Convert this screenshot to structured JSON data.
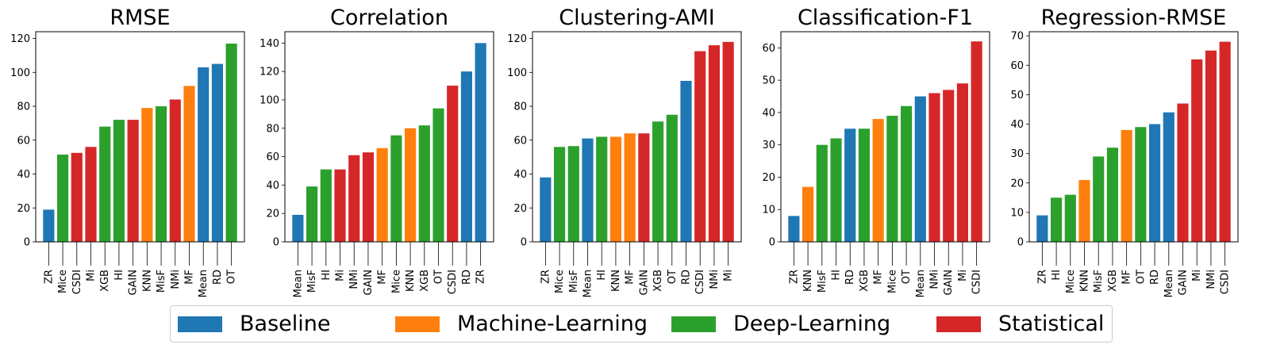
{
  "colors": {
    "Baseline": "#1f77b4",
    "Machine-Learning": "#ff7f0e",
    "Deep-Learning": "#2ca02c",
    "Statistical": "#d62728"
  },
  "legend": {
    "placement": "bottom-center",
    "entries": [
      "Baseline",
      "Machine-Learning",
      "Deep-Learning",
      "Statistical"
    ]
  },
  "chart_data": [
    {
      "type": "bar",
      "title": "RMSE",
      "ylim": [
        0,
        124
      ],
      "yticks": [
        0,
        20,
        40,
        60,
        80,
        100,
        120
      ],
      "categories": [
        "ZR",
        "Mice",
        "CSDI",
        "Mi",
        "XGB",
        "HI",
        "GAIN",
        "KNN",
        "MisF",
        "NMi",
        "MF",
        "Mean",
        "RD",
        "OT"
      ],
      "values": [
        19,
        51.5,
        52.5,
        56,
        68,
        72,
        72,
        79,
        80,
        84,
        92,
        103,
        105,
        117
      ],
      "groups": [
        "Baseline",
        "Deep-Learning",
        "Statistical",
        "Statistical",
        "Deep-Learning",
        "Deep-Learning",
        "Statistical",
        "Machine-Learning",
        "Deep-Learning",
        "Statistical",
        "Machine-Learning",
        "Baseline",
        "Baseline",
        "Deep-Learning"
      ]
    },
    {
      "type": "bar",
      "title": "Correlation",
      "ylim": [
        0,
        148
      ],
      "yticks": [
        0,
        20,
        40,
        60,
        80,
        100,
        120,
        140
      ],
      "categories": [
        "Mean",
        "MisF",
        "HI",
        "Mi",
        "NMi",
        "GAIN",
        "MF",
        "Mice",
        "KNN",
        "XGB",
        "OT",
        "CSDI",
        "RD",
        "ZR"
      ],
      "values": [
        19,
        39,
        51,
        51,
        61,
        63,
        66,
        75,
        80,
        82,
        94,
        110,
        120,
        140
      ],
      "groups": [
        "Baseline",
        "Deep-Learning",
        "Deep-Learning",
        "Statistical",
        "Statistical",
        "Statistical",
        "Machine-Learning",
        "Deep-Learning",
        "Machine-Learning",
        "Deep-Learning",
        "Deep-Learning",
        "Statistical",
        "Baseline",
        "Baseline"
      ]
    },
    {
      "type": "bar",
      "title": "Clustering-AMI",
      "ylim": [
        0,
        124
      ],
      "yticks": [
        0,
        20,
        40,
        60,
        80,
        100,
        120
      ],
      "categories": [
        "ZR",
        "Mice",
        "MisF",
        "Mean",
        "HI",
        "KNN",
        "MF",
        "GAIN",
        "XGB",
        "OT",
        "RD",
        "CSDI",
        "NMi",
        "Mi"
      ],
      "values": [
        38,
        56,
        56.5,
        61,
        62,
        62,
        64,
        64,
        71,
        75,
        95,
        112.5,
        116,
        118
      ],
      "groups": [
        "Baseline",
        "Deep-Learning",
        "Deep-Learning",
        "Baseline",
        "Deep-Learning",
        "Machine-Learning",
        "Machine-Learning",
        "Statistical",
        "Deep-Learning",
        "Deep-Learning",
        "Baseline",
        "Statistical",
        "Statistical",
        "Statistical"
      ]
    },
    {
      "type": "bar",
      "title": "Classification-F1",
      "ylim": [
        0,
        65
      ],
      "yticks": [
        0,
        10,
        20,
        30,
        40,
        50,
        60
      ],
      "categories": [
        "ZR",
        "KNN",
        "MisF",
        "HI",
        "RD",
        "XGB",
        "MF",
        "Mice",
        "OT",
        "Mean",
        "NMi",
        "GAIN",
        "Mi",
        "CSDI"
      ],
      "values": [
        8,
        17,
        30,
        32,
        35,
        35,
        38,
        39,
        42,
        45,
        46,
        47,
        49,
        62
      ],
      "groups": [
        "Baseline",
        "Machine-Learning",
        "Deep-Learning",
        "Deep-Learning",
        "Baseline",
        "Deep-Learning",
        "Machine-Learning",
        "Deep-Learning",
        "Deep-Learning",
        "Baseline",
        "Statistical",
        "Statistical",
        "Statistical",
        "Statistical"
      ]
    },
    {
      "type": "bar",
      "title": "Regression-RMSE",
      "ylim": [
        0,
        71.4
      ],
      "yticks": [
        0,
        10,
        20,
        30,
        40,
        50,
        60,
        70
      ],
      "categories": [
        "ZR",
        "HI",
        "Mice",
        "KNN",
        "MisF",
        "XGB",
        "MF",
        "OT",
        "RD",
        "Mean",
        "GAIN",
        "Mi",
        "NMi",
        "CSDI"
      ],
      "values": [
        9,
        15,
        16,
        21,
        29,
        32,
        38,
        39,
        40,
        44,
        47,
        62,
        65,
        68
      ],
      "groups": [
        "Baseline",
        "Deep-Learning",
        "Deep-Learning",
        "Machine-Learning",
        "Deep-Learning",
        "Deep-Learning",
        "Machine-Learning",
        "Deep-Learning",
        "Baseline",
        "Baseline",
        "Statistical",
        "Statistical",
        "Statistical",
        "Statistical"
      ]
    }
  ]
}
